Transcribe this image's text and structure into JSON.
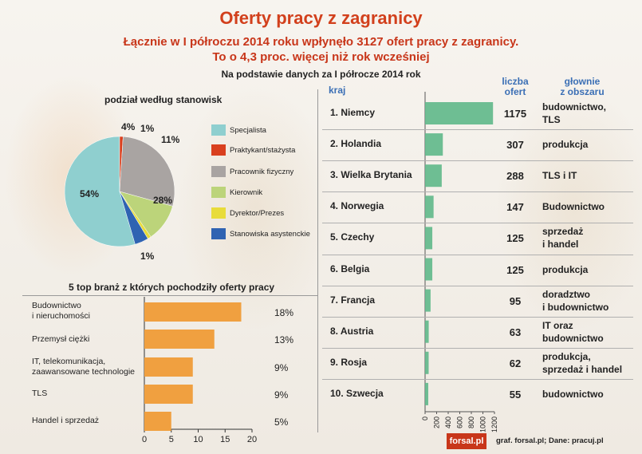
{
  "header": {
    "title": "Oferty pracy z zagranicy",
    "subtitle_line1": "Łącznie w I półroczu 2014 roku wpłynęło 3127 ofert pracy z zagranicy.",
    "subtitle_line2": "To o 4,3 proc. więcej niż rok wcześniej",
    "note": "Na podstawie danych za I półrocze 2014 rok"
  },
  "chart_data": [
    {
      "type": "pie",
      "title": "podział według stanowisk",
      "slices": [
        {
          "label": "Specjalista",
          "value": 54,
          "display": "54%",
          "color": "#8fcfcf"
        },
        {
          "label": "Praktykant/stażysta",
          "value": 1,
          "display": "1%",
          "color": "#d9401e"
        },
        {
          "label": "Pracownik fizyczny",
          "value": 28,
          "display": "28%",
          "color": "#a9a4a2"
        },
        {
          "label": "Kierownik",
          "value": 11,
          "display": "11%",
          "color": "#bcd47a"
        },
        {
          "label": "Dyrektor/Prezes",
          "value": 1,
          "display": "1%",
          "color": "#e8dc3a"
        },
        {
          "label": "Stanowiska asystenckie",
          "value": 4,
          "display": "4%",
          "color": "#2f63b2"
        }
      ]
    },
    {
      "type": "bar",
      "orientation": "horizontal",
      "title": "5 top branż z których pochodziły oferty pracy",
      "categories": [
        "Budownictwo\ni nieruchomości",
        "Przemysł ciężki",
        "IT, telekomunikacja,\nzaawansowane technologie",
        "TLS",
        "Handel i sprzedaż"
      ],
      "values": [
        18,
        13,
        9,
        9,
        5
      ],
      "value_labels": [
        "18%",
        "13%",
        "9%",
        "9%",
        "5%"
      ],
      "xlim": [
        0,
        20
      ],
      "xticks": [
        0,
        5,
        10,
        15,
        20
      ],
      "color": "#f0a040"
    },
    {
      "type": "bar",
      "orientation": "horizontal",
      "headers": {
        "country": "kraj",
        "count": "liczba\nofert",
        "area": "głownie\nz obszaru"
      },
      "categories": [
        "1. Niemcy",
        "2. Holandia",
        "3. Wielka Brytania",
        "4. Norwegia",
        "5. Czechy",
        "6. Belgia",
        "7. Francja",
        "8. Austria",
        "9. Rosja",
        "10. Szwecja"
      ],
      "values": [
        1175,
        307,
        288,
        147,
        125,
        125,
        95,
        63,
        62,
        55
      ],
      "areas": [
        "budownictwo,\nTLS",
        "produkcja",
        "TLS i IT",
        "Budownictwo",
        "sprzedaż\ni handel",
        "produkcja",
        "doradztwo\ni budownictwo",
        "IT oraz\nbudownictwo",
        "produkcja,\nsprzedaż i handel",
        "budownictwo"
      ],
      "xlim": [
        0,
        1200
      ],
      "xticks": [
        0,
        200,
        400,
        600,
        800,
        1000,
        1200
      ],
      "color": "#5fb88a"
    }
  ],
  "footer": {
    "logo": "forsal.pl",
    "credit": "graf. forsal.pl;  Dane: pracuj.pl"
  }
}
